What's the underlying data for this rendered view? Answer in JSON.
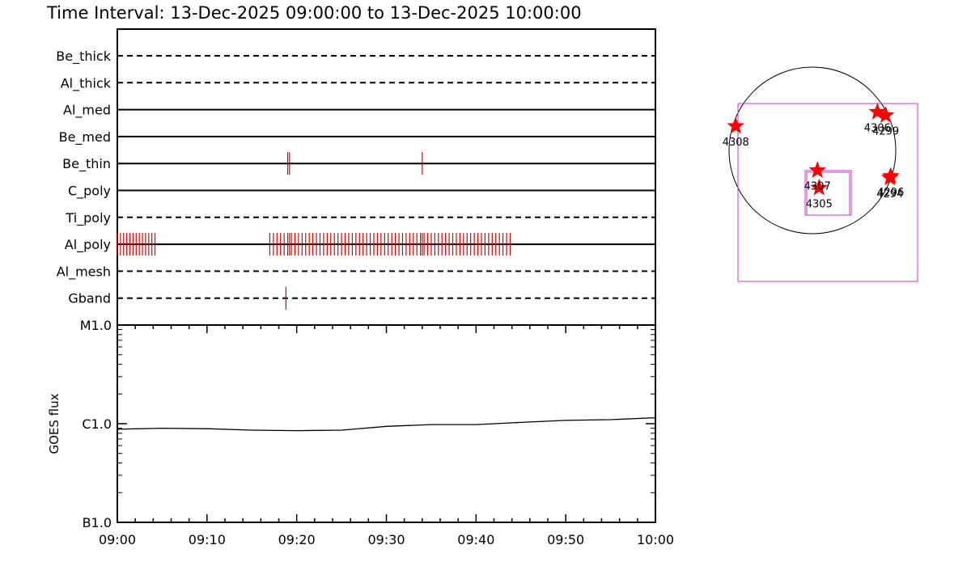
{
  "title": "Time Interval: 13-Dec-2025 09:00:00 to 13-Dec-2025 10:00:00",
  "colors": {
    "events": "#dd0000",
    "stars": "#ff0000",
    "box": "#cc33cc",
    "axis": "#000000"
  },
  "chart_data": [
    {
      "type": "timeline",
      "x_unit": "minutes after 09:00",
      "xlim": [
        0,
        60
      ],
      "filters": [
        {
          "name": "Be_thick",
          "style": "dashed",
          "events": []
        },
        {
          "name": "Al_thick",
          "style": "dashed",
          "events": []
        },
        {
          "name": "Al_med",
          "style": "solid",
          "events": []
        },
        {
          "name": "Be_med",
          "style": "solid",
          "events": []
        },
        {
          "name": "Be_thin",
          "style": "solid",
          "events": [
            19.0,
            19.2,
            34.0
          ]
        },
        {
          "name": "C_poly",
          "style": "solid",
          "events": []
        },
        {
          "name": "Ti_poly",
          "style": "dashed",
          "events": []
        },
        {
          "name": "Al_poly",
          "style": "solid",
          "events": [
            0.0,
            0.35,
            0.7,
            1.05,
            1.4,
            1.75,
            2.1,
            2.45,
            2.8,
            3.15,
            3.5,
            3.85,
            4.2,
            17.0,
            17.4,
            17.8,
            18.2,
            18.6,
            19.0,
            19.2,
            19.4,
            19.8,
            20.2,
            20.6,
            21.0,
            21.4,
            21.8,
            22.2,
            22.6,
            23.0,
            23.4,
            23.8,
            24.2,
            24.6,
            25.0,
            25.4,
            25.8,
            26.2,
            26.6,
            27.0,
            27.4,
            27.8,
            28.2,
            28.6,
            29.0,
            29.4,
            29.8,
            30.2,
            30.6,
            31.0,
            31.4,
            31.8,
            32.2,
            32.6,
            33.0,
            33.4,
            33.8,
            34.0,
            34.2,
            34.6,
            35.0,
            35.4,
            35.8,
            36.2,
            36.6,
            37.0,
            37.4,
            37.8,
            38.2,
            38.6,
            39.0,
            39.4,
            39.8,
            40.2,
            40.6,
            41.0,
            41.4,
            41.8,
            42.2,
            42.6,
            43.0,
            43.4,
            43.8
          ]
        },
        {
          "name": "Al_mesh",
          "style": "dashed",
          "events": []
        },
        {
          "name": "Gband",
          "style": "dashed",
          "events": [
            18.8
          ]
        }
      ]
    },
    {
      "type": "line",
      "ylabel": "GOES flux",
      "ylog": true,
      "ylim": [
        1e-07,
        1e-05
      ],
      "yticks": [
        "B1.0",
        "C1.0",
        "M1.0"
      ],
      "xticks": [
        "09:00",
        "09:10",
        "09:20",
        "09:30",
        "09:40",
        "09:50",
        "10:00"
      ],
      "x": [
        0,
        5,
        10,
        15,
        20,
        25,
        30,
        35,
        40,
        45,
        50,
        55,
        60
      ],
      "y": [
        8.8e-07,
        9e-07,
        8.9e-07,
        8.6e-07,
        8.5e-07,
        8.6e-07,
        9.4e-07,
        9.8e-07,
        9.8e-07,
        1.03e-06,
        1.08e-06,
        1.1e-06,
        1.15e-06
      ]
    },
    {
      "type": "scatter",
      "description_units": "disk map, solar radii",
      "points": [
        {
          "label": "4308",
          "x": -0.92,
          "y": 0.29
        },
        {
          "label": "4306",
          "x": 0.78,
          "y": 0.46
        },
        {
          "label": "4299",
          "x": 0.88,
          "y": 0.42
        },
        {
          "label": "4307",
          "x": 0.06,
          "y": -0.24
        },
        {
          "label": "4305",
          "x": 0.08,
          "y": -0.45
        },
        {
          "label": "4296",
          "x": 0.94,
          "y": -0.31
        },
        {
          "label": "4294",
          "x": 0.93,
          "y": -0.33
        }
      ]
    }
  ]
}
